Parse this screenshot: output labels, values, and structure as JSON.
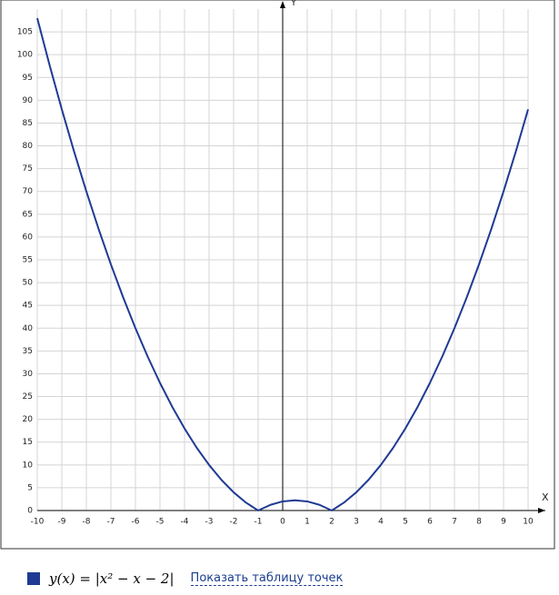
{
  "chart_data": {
    "type": "line",
    "x_label": "X",
    "y_label": "Y",
    "x": [
      -10,
      -9.5,
      -9,
      -8.5,
      -8,
      -7.5,
      -7,
      -6.5,
      -6,
      -5.5,
      -5,
      -4.5,
      -4,
      -3.5,
      -3,
      -2.5,
      -2,
      -1.5,
      -1,
      -0.5,
      0,
      0.5,
      1,
      1.5,
      2,
      2.5,
      3,
      3.5,
      4,
      4.5,
      5,
      5.5,
      6,
      6.5,
      7,
      7.5,
      8,
      8.5,
      9,
      9.5,
      10
    ],
    "series": [
      {
        "name": "y(x) = |x² − x − 2|",
        "color": "#1f3a93",
        "values": [
          108,
          97.75,
          88,
          78.75,
          70,
          61.75,
          54,
          46.75,
          40,
          33.75,
          28,
          22.75,
          18,
          13.75,
          10,
          6.75,
          4,
          1.75,
          0,
          1.25,
          2,
          2.25,
          2,
          1.25,
          0,
          1.75,
          4,
          6.75,
          10,
          13.75,
          18,
          22.75,
          28,
          33.75,
          40,
          46.75,
          54,
          61.75,
          70,
          78.75,
          88
        ]
      }
    ],
    "xlim": [
      -10,
      10
    ],
    "ylim": [
      0,
      110
    ],
    "xticks": [
      -10,
      -9,
      -8,
      -7,
      -6,
      -5,
      -4,
      -3,
      -2,
      -1,
      0,
      1,
      2,
      3,
      4,
      5,
      6,
      7,
      8,
      9,
      10
    ],
    "yticks": [
      0,
      5,
      10,
      15,
      20,
      25,
      30,
      35,
      40,
      45,
      50,
      55,
      60,
      65,
      70,
      75,
      80,
      85,
      90,
      95,
      100,
      105
    ],
    "grid": true,
    "link_text": "Показать таблицу точек"
  }
}
